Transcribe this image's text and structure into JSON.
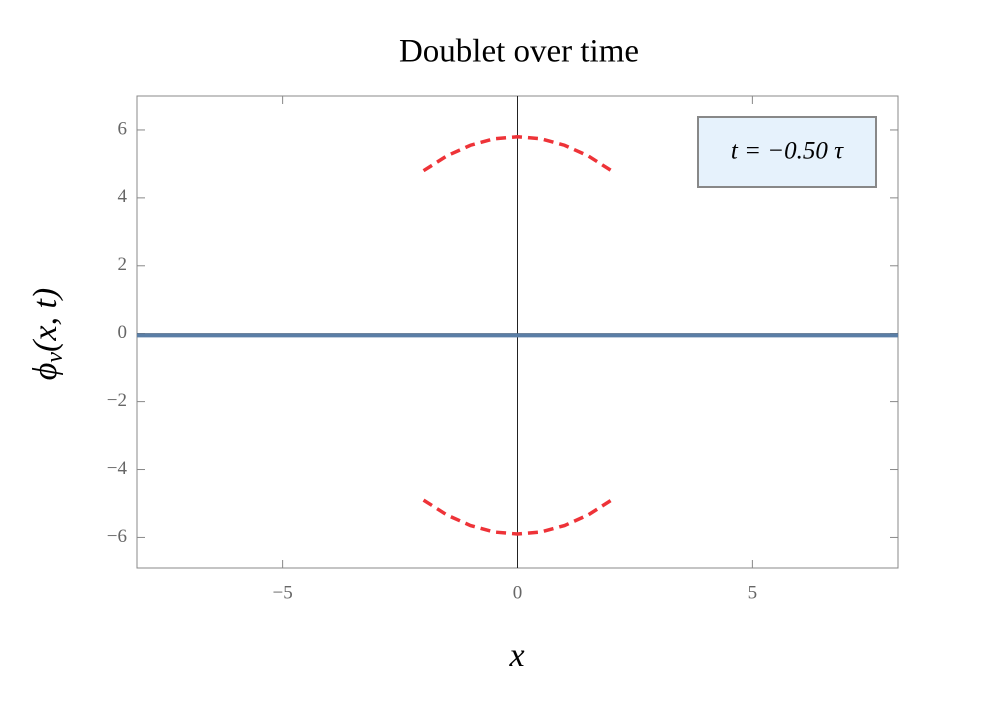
{
  "chart_data": {
    "type": "line",
    "title": "Doublet over time",
    "xlabel": "x",
    "ylabel": {
      "base": "ϕ",
      "sub": "v",
      "rest": "(x, t)"
    },
    "annotation": "t = −0.50 τ",
    "xlim": [
      -8.1,
      8.1
    ],
    "ylim": [
      -6.9,
      7
    ],
    "xticks": [
      {
        "value": -5,
        "label": "−5"
      },
      0,
      5
    ],
    "yticks": [
      {
        "value": -6,
        "label": "−6"
      },
      {
        "value": -4,
        "label": "−4"
      },
      {
        "value": -2,
        "label": "−2"
      },
      0,
      2,
      4,
      6
    ],
    "series": [
      {
        "color": "#5a7ea6",
        "dashed": false,
        "x": [
          -8.1,
          8.1
        ],
        "values": [
          -0.05,
          -0.05
        ]
      },
      {
        "color": "#ee3338",
        "dashed": true,
        "x": [
          -2,
          -1.5,
          -1,
          -0.5,
          0,
          0.5,
          1,
          1.5,
          2
        ],
        "values": [
          4.8,
          5.24,
          5.55,
          5.74,
          5.8,
          5.74,
          5.55,
          5.24,
          4.8
        ]
      },
      {
        "color": "#ee3338",
        "dashed": true,
        "x": [
          -2,
          -1.5,
          -1,
          -0.5,
          0,
          0.5,
          1,
          1.5,
          2
        ],
        "values": [
          -4.9,
          -5.34,
          -5.65,
          -5.84,
          -5.9,
          -5.84,
          -5.65,
          -5.34,
          -4.9
        ]
      }
    ]
  }
}
